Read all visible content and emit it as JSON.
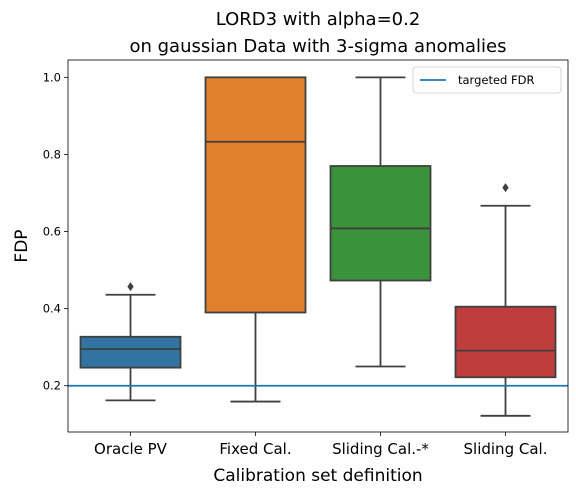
{
  "chart_data": {
    "type": "box",
    "title_line1": "LORD3 with alpha=0.2",
    "title_line2": "on gaussian Data with 3-sigma anomalies",
    "xlabel": "Calibration set definition",
    "ylabel": "FDP",
    "ylim": [
      0.08,
      1.045
    ],
    "yticks": [
      0.2,
      0.4,
      0.6,
      0.8,
      1.0
    ],
    "ytick_labels": [
      "0.2",
      "0.4",
      "0.6",
      "0.8",
      "1.0"
    ],
    "categories": [
      "Oracle PV",
      "Fixed Cal.",
      "Sliding Cal.-*",
      "Sliding Cal."
    ],
    "boxes": [
      {
        "category": "Oracle PV",
        "whisker_low": 0.162,
        "q1": 0.247,
        "median": 0.295,
        "q3": 0.327,
        "whisker_high": 0.436,
        "outliers": [
          0.457
        ],
        "color": "#3274a1"
      },
      {
        "category": "Fixed Cal.",
        "whisker_low": 0.159,
        "q1": 0.39,
        "median": 0.833,
        "q3": 1.0,
        "whisker_high": 1.0,
        "outliers": [],
        "color": "#e1812c"
      },
      {
        "category": "Sliding Cal.-*",
        "whisker_low": 0.25,
        "q1": 0.473,
        "median": 0.608,
        "q3": 0.77,
        "whisker_high": 1.0,
        "outliers": [],
        "color": "#3a923a"
      },
      {
        "category": "Sliding Cal.",
        "whisker_low": 0.122,
        "q1": 0.222,
        "median": 0.291,
        "q3": 0.405,
        "whisker_high": 0.667,
        "outliers": [
          0.714
        ],
        "color": "#c03d3e"
      }
    ],
    "reference_line": {
      "y": 0.2,
      "label": "targeted FDR",
      "color": "#1f77b4"
    },
    "legend": {
      "position": "top-right",
      "entries": [
        "targeted FDR"
      ]
    },
    "grid": false
  }
}
